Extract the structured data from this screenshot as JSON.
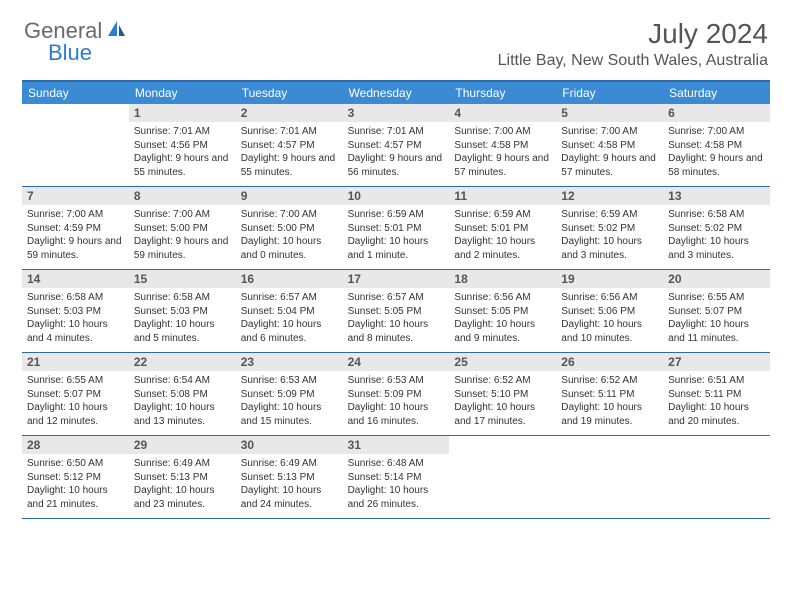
{
  "logo": {
    "text_general": "General",
    "text_blue": "Blue"
  },
  "header": {
    "title": "July 2024",
    "location": "Little Bay, New South Wales, Australia"
  },
  "colors": {
    "header_blue": "#3b8bd4",
    "border_blue": "#2b6aa8",
    "daynum_bg": "#e8e8e8",
    "text_gray": "#555555",
    "logo_gray": "#6a6a6a",
    "logo_blue": "#2b7cd3"
  },
  "weekdays": [
    "Sunday",
    "Monday",
    "Tuesday",
    "Wednesday",
    "Thursday",
    "Friday",
    "Saturday"
  ],
  "weeks": [
    [
      {
        "num": "",
        "sunrise": "",
        "sunset": "",
        "daylight": ""
      },
      {
        "num": "1",
        "sunrise": "Sunrise: 7:01 AM",
        "sunset": "Sunset: 4:56 PM",
        "daylight": "Daylight: 9 hours and 55 minutes."
      },
      {
        "num": "2",
        "sunrise": "Sunrise: 7:01 AM",
        "sunset": "Sunset: 4:57 PM",
        "daylight": "Daylight: 9 hours and 55 minutes."
      },
      {
        "num": "3",
        "sunrise": "Sunrise: 7:01 AM",
        "sunset": "Sunset: 4:57 PM",
        "daylight": "Daylight: 9 hours and 56 minutes."
      },
      {
        "num": "4",
        "sunrise": "Sunrise: 7:00 AM",
        "sunset": "Sunset: 4:58 PM",
        "daylight": "Daylight: 9 hours and 57 minutes."
      },
      {
        "num": "5",
        "sunrise": "Sunrise: 7:00 AM",
        "sunset": "Sunset: 4:58 PM",
        "daylight": "Daylight: 9 hours and 57 minutes."
      },
      {
        "num": "6",
        "sunrise": "Sunrise: 7:00 AM",
        "sunset": "Sunset: 4:58 PM",
        "daylight": "Daylight: 9 hours and 58 minutes."
      }
    ],
    [
      {
        "num": "7",
        "sunrise": "Sunrise: 7:00 AM",
        "sunset": "Sunset: 4:59 PM",
        "daylight": "Daylight: 9 hours and 59 minutes."
      },
      {
        "num": "8",
        "sunrise": "Sunrise: 7:00 AM",
        "sunset": "Sunset: 5:00 PM",
        "daylight": "Daylight: 9 hours and 59 minutes."
      },
      {
        "num": "9",
        "sunrise": "Sunrise: 7:00 AM",
        "sunset": "Sunset: 5:00 PM",
        "daylight": "Daylight: 10 hours and 0 minutes."
      },
      {
        "num": "10",
        "sunrise": "Sunrise: 6:59 AM",
        "sunset": "Sunset: 5:01 PM",
        "daylight": "Daylight: 10 hours and 1 minute."
      },
      {
        "num": "11",
        "sunrise": "Sunrise: 6:59 AM",
        "sunset": "Sunset: 5:01 PM",
        "daylight": "Daylight: 10 hours and 2 minutes."
      },
      {
        "num": "12",
        "sunrise": "Sunrise: 6:59 AM",
        "sunset": "Sunset: 5:02 PM",
        "daylight": "Daylight: 10 hours and 3 minutes."
      },
      {
        "num": "13",
        "sunrise": "Sunrise: 6:58 AM",
        "sunset": "Sunset: 5:02 PM",
        "daylight": "Daylight: 10 hours and 3 minutes."
      }
    ],
    [
      {
        "num": "14",
        "sunrise": "Sunrise: 6:58 AM",
        "sunset": "Sunset: 5:03 PM",
        "daylight": "Daylight: 10 hours and 4 minutes."
      },
      {
        "num": "15",
        "sunrise": "Sunrise: 6:58 AM",
        "sunset": "Sunset: 5:03 PM",
        "daylight": "Daylight: 10 hours and 5 minutes."
      },
      {
        "num": "16",
        "sunrise": "Sunrise: 6:57 AM",
        "sunset": "Sunset: 5:04 PM",
        "daylight": "Daylight: 10 hours and 6 minutes."
      },
      {
        "num": "17",
        "sunrise": "Sunrise: 6:57 AM",
        "sunset": "Sunset: 5:05 PM",
        "daylight": "Daylight: 10 hours and 8 minutes."
      },
      {
        "num": "18",
        "sunrise": "Sunrise: 6:56 AM",
        "sunset": "Sunset: 5:05 PM",
        "daylight": "Daylight: 10 hours and 9 minutes."
      },
      {
        "num": "19",
        "sunrise": "Sunrise: 6:56 AM",
        "sunset": "Sunset: 5:06 PM",
        "daylight": "Daylight: 10 hours and 10 minutes."
      },
      {
        "num": "20",
        "sunrise": "Sunrise: 6:55 AM",
        "sunset": "Sunset: 5:07 PM",
        "daylight": "Daylight: 10 hours and 11 minutes."
      }
    ],
    [
      {
        "num": "21",
        "sunrise": "Sunrise: 6:55 AM",
        "sunset": "Sunset: 5:07 PM",
        "daylight": "Daylight: 10 hours and 12 minutes."
      },
      {
        "num": "22",
        "sunrise": "Sunrise: 6:54 AM",
        "sunset": "Sunset: 5:08 PM",
        "daylight": "Daylight: 10 hours and 13 minutes."
      },
      {
        "num": "23",
        "sunrise": "Sunrise: 6:53 AM",
        "sunset": "Sunset: 5:09 PM",
        "daylight": "Daylight: 10 hours and 15 minutes."
      },
      {
        "num": "24",
        "sunrise": "Sunrise: 6:53 AM",
        "sunset": "Sunset: 5:09 PM",
        "daylight": "Daylight: 10 hours and 16 minutes."
      },
      {
        "num": "25",
        "sunrise": "Sunrise: 6:52 AM",
        "sunset": "Sunset: 5:10 PM",
        "daylight": "Daylight: 10 hours and 17 minutes."
      },
      {
        "num": "26",
        "sunrise": "Sunrise: 6:52 AM",
        "sunset": "Sunset: 5:11 PM",
        "daylight": "Daylight: 10 hours and 19 minutes."
      },
      {
        "num": "27",
        "sunrise": "Sunrise: 6:51 AM",
        "sunset": "Sunset: 5:11 PM",
        "daylight": "Daylight: 10 hours and 20 minutes."
      }
    ],
    [
      {
        "num": "28",
        "sunrise": "Sunrise: 6:50 AM",
        "sunset": "Sunset: 5:12 PM",
        "daylight": "Daylight: 10 hours and 21 minutes."
      },
      {
        "num": "29",
        "sunrise": "Sunrise: 6:49 AM",
        "sunset": "Sunset: 5:13 PM",
        "daylight": "Daylight: 10 hours and 23 minutes."
      },
      {
        "num": "30",
        "sunrise": "Sunrise: 6:49 AM",
        "sunset": "Sunset: 5:13 PM",
        "daylight": "Daylight: 10 hours and 24 minutes."
      },
      {
        "num": "31",
        "sunrise": "Sunrise: 6:48 AM",
        "sunset": "Sunset: 5:14 PM",
        "daylight": "Daylight: 10 hours and 26 minutes."
      },
      {
        "num": "",
        "sunrise": "",
        "sunset": "",
        "daylight": ""
      },
      {
        "num": "",
        "sunrise": "",
        "sunset": "",
        "daylight": ""
      },
      {
        "num": "",
        "sunrise": "",
        "sunset": "",
        "daylight": ""
      }
    ]
  ]
}
